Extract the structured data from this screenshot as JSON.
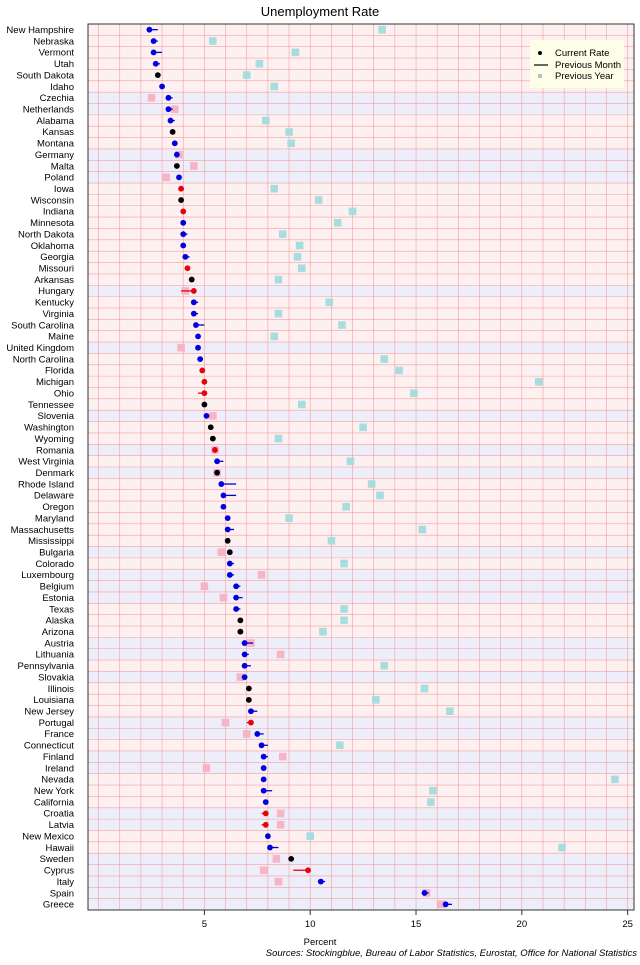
{
  "chart_data": {
    "type": "scatter",
    "title": "Unemployment Rate",
    "xlabel": "Percent",
    "source": "Sources: Stockingblue, Bureau of Labor Statistics, Eurostat, Office for National Statistics",
    "xlim": [
      -0.5,
      25.3
    ],
    "xticks": [
      5,
      10,
      15,
      20,
      25
    ],
    "legend": {
      "position": "top-right",
      "entries": [
        "Current Rate",
        "Previous Month",
        "Previous Year"
      ]
    },
    "colors": {
      "increase": "#e8000b",
      "decrease": "#0000dd",
      "unchanged": "#000000",
      "prev_year_us": "#a8dde0",
      "prev_year_eu": "#f8b4c4",
      "band_us": "#fdf0f0",
      "band_eu": "#eeeefb",
      "grid": "#f2a0a0"
    },
    "series_keys": [
      "name",
      "current",
      "previous_month",
      "previous_year",
      "region"
    ],
    "rows": [
      [
        "New Hampshire",
        2.4,
        2.8,
        13.4,
        "us"
      ],
      [
        "Nebraska",
        2.6,
        2.8,
        5.4,
        "us"
      ],
      [
        "Vermont",
        2.6,
        3.0,
        9.3,
        "us"
      ],
      [
        "Utah",
        2.7,
        2.9,
        7.6,
        "us"
      ],
      [
        "South Dakota",
        2.8,
        2.8,
        7.0,
        "us"
      ],
      [
        "Idaho",
        3.0,
        3.1,
        8.3,
        "us"
      ],
      [
        "Czechia",
        3.3,
        3.5,
        2.5,
        "eu"
      ],
      [
        "Netherlands",
        3.3,
        3.5,
        3.6,
        "eu"
      ],
      [
        "Alabama",
        3.4,
        3.6,
        7.9,
        "us"
      ],
      [
        "Kansas",
        3.5,
        3.5,
        9.0,
        "us"
      ],
      [
        "Montana",
        3.6,
        3.7,
        9.1,
        "us"
      ],
      [
        "Germany",
        3.7,
        3.8,
        3.8,
        "eu"
      ],
      [
        "Malta",
        3.7,
        3.7,
        4.5,
        "eu"
      ],
      [
        "Poland",
        3.8,
        3.9,
        3.2,
        "eu"
      ],
      [
        "Iowa",
        3.9,
        3.8,
        8.3,
        "us"
      ],
      [
        "Wisconsin",
        3.9,
        3.9,
        10.4,
        "us"
      ],
      [
        "Indiana",
        4.0,
        3.9,
        12.0,
        "us"
      ],
      [
        "Minnesota",
        4.0,
        4.1,
        11.3,
        "us"
      ],
      [
        "North Dakota",
        4.0,
        4.2,
        8.7,
        "us"
      ],
      [
        "Oklahoma",
        4.0,
        4.1,
        9.5,
        "us"
      ],
      [
        "Georgia",
        4.1,
        4.3,
        9.4,
        "us"
      ],
      [
        "Missouri",
        4.2,
        4.1,
        9.6,
        "us"
      ],
      [
        "Arkansas",
        4.4,
        4.4,
        8.5,
        "us"
      ],
      [
        "Hungary",
        4.5,
        3.9,
        4.1,
        "eu"
      ],
      [
        "Kentucky",
        4.5,
        4.7,
        10.9,
        "us"
      ],
      [
        "Virginia",
        4.5,
        4.7,
        8.5,
        "us"
      ],
      [
        "South Carolina",
        4.6,
        5.0,
        11.5,
        "us"
      ],
      [
        "Maine",
        4.7,
        4.8,
        8.3,
        "us"
      ],
      [
        "United Kingdom",
        4.7,
        4.8,
        3.9,
        "eu"
      ],
      [
        "North Carolina",
        4.8,
        4.9,
        13.5,
        "us"
      ],
      [
        "Florida",
        4.9,
        4.8,
        14.2,
        "us"
      ],
      [
        "Michigan",
        5.0,
        4.9,
        20.8,
        "us"
      ],
      [
        "Ohio",
        5.0,
        4.7,
        14.9,
        "us"
      ],
      [
        "Tennessee",
        5.0,
        5.0,
        9.6,
        "us"
      ],
      [
        "Slovenia",
        5.1,
        5.2,
        5.4,
        "eu"
      ],
      [
        "Washington",
        5.3,
        5.3,
        12.5,
        "us"
      ],
      [
        "Wyoming",
        5.4,
        5.4,
        8.5,
        "us"
      ],
      [
        "Romania",
        5.5,
        5.4,
        5.5,
        "eu"
      ],
      [
        "West Virginia",
        5.6,
        5.9,
        11.9,
        "us"
      ],
      [
        "Denmark",
        5.6,
        5.6,
        5.6,
        "eu"
      ],
      [
        "Rhode Island",
        5.8,
        6.5,
        12.9,
        "us"
      ],
      [
        "Delaware",
        5.9,
        6.5,
        13.3,
        "us"
      ],
      [
        "Oregon",
        5.9,
        6.0,
        11.7,
        "us"
      ],
      [
        "Maryland",
        6.1,
        6.2,
        9.0,
        "us"
      ],
      [
        "Massachusetts",
        6.1,
        6.4,
        15.3,
        "us"
      ],
      [
        "Mississippi",
        6.1,
        6.1,
        11.0,
        "us"
      ],
      [
        "Bulgaria",
        6.2,
        6.2,
        5.8,
        "eu"
      ],
      [
        "Colorado",
        6.2,
        6.4,
        11.6,
        "us"
      ],
      [
        "Luxembourg",
        6.2,
        6.4,
        7.7,
        "eu"
      ],
      [
        "Belgium",
        6.5,
        6.7,
        5.0,
        "eu"
      ],
      [
        "Estonia",
        6.5,
        6.8,
        5.9,
        "eu"
      ],
      [
        "Texas",
        6.5,
        6.7,
        11.6,
        "us"
      ],
      [
        "Alaska",
        6.7,
        6.7,
        11.6,
        "us"
      ],
      [
        "Arizona",
        6.7,
        6.7,
        10.6,
        "us"
      ],
      [
        "Austria",
        6.9,
        7.3,
        7.2,
        "eu"
      ],
      [
        "Lithuania",
        6.9,
        7.1,
        8.6,
        "eu"
      ],
      [
        "Pennsylvania",
        6.9,
        7.2,
        13.5,
        "us"
      ],
      [
        "Slovakia",
        6.9,
        7.0,
        6.7,
        "eu"
      ],
      [
        "Illinois",
        7.1,
        7.1,
        15.4,
        "us"
      ],
      [
        "Louisiana",
        7.1,
        7.1,
        13.1,
        "us"
      ],
      [
        "New Jersey",
        7.2,
        7.5,
        16.6,
        "us"
      ],
      [
        "Portugal",
        7.2,
        7.0,
        6.0,
        "eu"
      ],
      [
        "France",
        7.5,
        7.8,
        7.0,
        "eu"
      ],
      [
        "Connecticut",
        7.7,
        8.0,
        11.4,
        "us"
      ],
      [
        "Finland",
        7.8,
        8.0,
        8.7,
        "eu"
      ],
      [
        "Ireland",
        7.8,
        7.9,
        5.1,
        "eu"
      ],
      [
        "Nevada",
        7.8,
        7.9,
        24.4,
        "us"
      ],
      [
        "New York",
        7.8,
        8.2,
        15.8,
        "us"
      ],
      [
        "California",
        7.9,
        8.0,
        15.7,
        "us"
      ],
      [
        "Croatia",
        7.9,
        7.7,
        8.6,
        "eu"
      ],
      [
        "Latvia",
        7.9,
        7.7,
        8.6,
        "eu"
      ],
      [
        "New Mexico",
        8.0,
        8.1,
        10.0,
        "us"
      ],
      [
        "Hawaii",
        8.1,
        8.5,
        21.9,
        "us"
      ],
      [
        "Sweden",
        9.1,
        9.1,
        8.4,
        "eu"
      ],
      [
        "Cyprus",
        9.9,
        9.2,
        7.8,
        "eu"
      ],
      [
        "Italy",
        10.5,
        10.7,
        8.5,
        "eu"
      ],
      [
        "Spain",
        15.4,
        15.6,
        15.5,
        "eu"
      ],
      [
        "Greece",
        16.4,
        16.7,
        16.2,
        "eu"
      ]
    ]
  }
}
